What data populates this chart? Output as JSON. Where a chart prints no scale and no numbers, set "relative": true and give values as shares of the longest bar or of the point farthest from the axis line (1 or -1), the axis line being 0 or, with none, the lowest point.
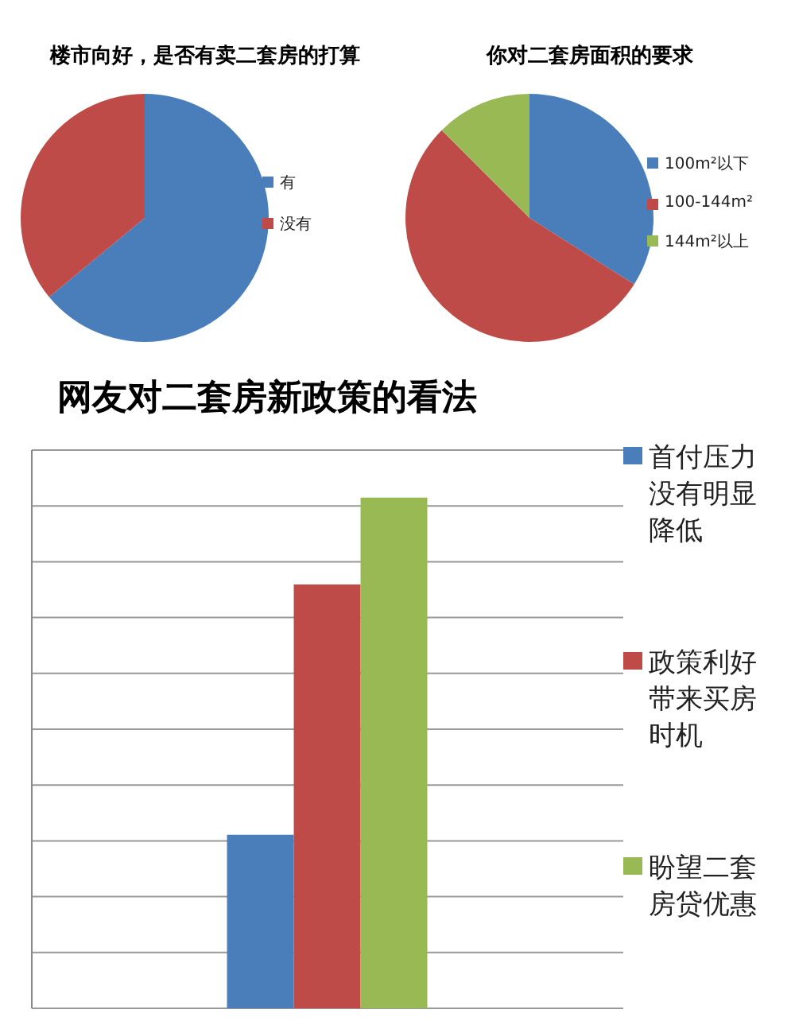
{
  "chart_data": [
    {
      "type": "pie",
      "title": "楼市向好，是否有卖二套房的打算",
      "categories": [
        "有",
        "没有"
      ],
      "values": [
        64,
        36
      ],
      "colors": [
        "#4a7ebb",
        "#be4b48"
      ],
      "legend": "right"
    },
    {
      "type": "pie",
      "title": "你对二套房面积的要求",
      "categories": [
        "100m²以下",
        "100-144m²",
        "144m²以上"
      ],
      "values": [
        34,
        53.5,
        12.5
      ],
      "colors": [
        "#4a7ebb",
        "#be4b48",
        "#98b954"
      ],
      "legend": "right"
    },
    {
      "type": "bar",
      "title": "网友对二套房新政策的看法",
      "categories": [
        null
      ],
      "relative": true,
      "grid": "y",
      "legend": "right",
      "series": [
        {
          "name": "首付压力没有明显降低",
          "color": "#4a7ebb",
          "values": [
            0.34
          ]
        },
        {
          "name": "政策利好带来买房时机",
          "color": "#be4b48",
          "values": [
            0.83
          ]
        },
        {
          "name": "盼望二套房贷优惠",
          "color": "#98b954",
          "values": [
            1
          ]
        }
      ]
    }
  ]
}
